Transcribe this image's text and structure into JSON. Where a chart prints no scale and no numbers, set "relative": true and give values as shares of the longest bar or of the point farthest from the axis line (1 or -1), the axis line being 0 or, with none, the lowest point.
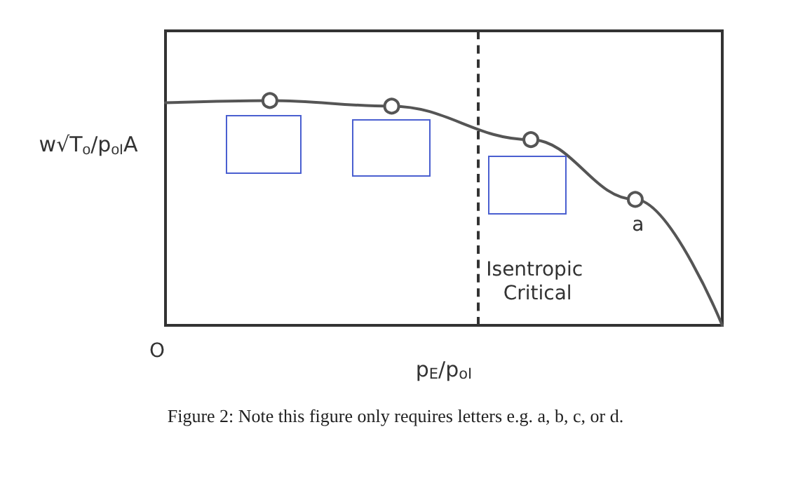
{
  "chart_data": {
    "type": "line",
    "relative": true,
    "xlabel": "p$_{E}$/p$_{oI}$",
    "ylabel": "w√T$_{o}$/p$_{oI}$A",
    "tick_labels": false,
    "grid": false,
    "categories": [
      null,
      null,
      null,
      null,
      null,
      null,
      null,
      null,
      null,
      null,
      null,
      null,
      null,
      null,
      null,
      null,
      null,
      null,
      null,
      null,
      null,
      null,
      null,
      null,
      null,
      null,
      null,
      null,
      null,
      null,
      null,
      null,
      null
    ],
    "series": [
      {
        "color": "#555555",
        "marker": "circle",
        "values": [
          0.99,
          null,
          null,
          null,
          null,
          null,
          1.0,
          null,
          null,
          null,
          null,
          null,
          null,
          0.975,
          null,
          null,
          null,
          null,
          null,
          null,
          null,
          0.826,
          null,
          null,
          null,
          null,
          null,
          0.56,
          null,
          null,
          null,
          null,
          0
        ]
      }
    ],
    "annotations": [
      "O",
      "a",
      "Isentropic Critical",
      "Figure 2: Note this figure only requires letters e.g. a, b, c, or d."
    ]
  }
}
